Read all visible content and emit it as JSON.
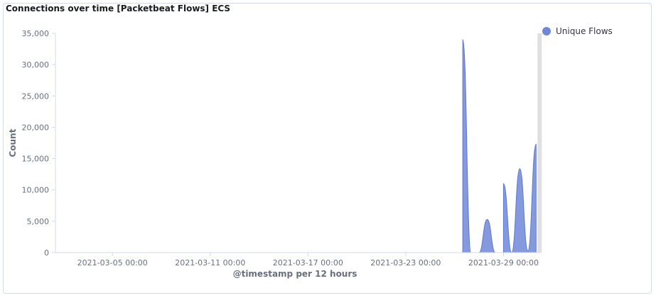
{
  "panel": {
    "title": "Connections over time [Packetbeat Flows] ECS"
  },
  "chart_data": {
    "type": "area",
    "title": "Connections over time [Packetbeat Flows] ECS",
    "xlabel": "@timestamp per 12 hours",
    "ylabel": "Count",
    "x_range": [
      "2021-03-01 12:00",
      "2021-03-31 06:00"
    ],
    "ylim": [
      0,
      35000
    ],
    "y_ticks": [
      0,
      5000,
      10000,
      15000,
      20000,
      25000,
      30000,
      35000
    ],
    "y_tick_labels": [
      "0",
      "5,000",
      "10,000",
      "15,000",
      "20,000",
      "25,000",
      "30,000",
      "35,000"
    ],
    "x_ticks": [
      "2021-03-05 00:00",
      "2021-03-11 00:00",
      "2021-03-17 00:00",
      "2021-03-23 00:00",
      "2021-03-29 00:00"
    ],
    "x_tick_labels": [
      "2021-03-05 00:00",
      "2021-03-11 00:00",
      "2021-03-17 00:00",
      "2021-03-23 00:00",
      "2021-03-29 00:00"
    ],
    "legend_position": "top-right",
    "series": [
      {
        "name": "Unique Flows",
        "color": "#6f87d8",
        "points": [
          {
            "x": "2021-03-26 12:00",
            "y": 0
          },
          {
            "x": "2021-03-26 12:00",
            "y": 34000
          },
          {
            "x": "2021-03-27 00:00",
            "y": 0
          },
          {
            "x": "2021-03-27 12:00",
            "y": 0
          },
          {
            "x": "2021-03-28 00:00",
            "y": 5300
          },
          {
            "x": "2021-03-28 12:00",
            "y": 0
          },
          {
            "x": "2021-03-29 00:00",
            "y": 0
          },
          {
            "x": "2021-03-29 00:00",
            "y": 11000
          },
          {
            "x": "2021-03-29 12:00",
            "y": 0
          },
          {
            "x": "2021-03-30 00:00",
            "y": 13400
          },
          {
            "x": "2021-03-30 12:00",
            "y": 300
          },
          {
            "x": "2021-03-31 00:00",
            "y": 17300
          },
          {
            "x": "2021-03-31 00:00",
            "y": 0
          }
        ]
      }
    ],
    "current_interval_shading": {
      "from": "2021-03-31 00:00",
      "to": "2021-03-31 06:00"
    }
  }
}
